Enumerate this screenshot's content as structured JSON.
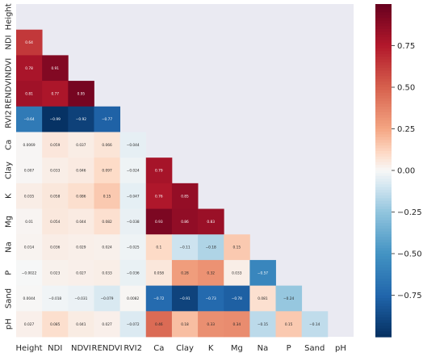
{
  "chart_data": {
    "type": "heatmap",
    "mask": "upper-triangle",
    "variables": [
      "Height",
      "NDI",
      "NDVI",
      "RENDVI",
      "RVI2",
      "Ca",
      "Clay",
      "K",
      "Mg",
      "Na",
      "P",
      "Sand",
      "pH"
    ],
    "cells": [
      {
        "row": "NDI",
        "col": "Height",
        "value": 0.64,
        "label": "0.64"
      },
      {
        "row": "NDVI",
        "col": "Height",
        "value": 0.78,
        "label": "0.78"
      },
      {
        "row": "NDVI",
        "col": "NDI",
        "value": 0.91,
        "label": "0.91"
      },
      {
        "row": "RENDVI",
        "col": "Height",
        "value": 0.81,
        "label": "0.81"
      },
      {
        "row": "RENDVI",
        "col": "NDI",
        "value": 0.77,
        "label": "0.77"
      },
      {
        "row": "RENDVI",
        "col": "NDVI",
        "value": 0.95,
        "label": "0.95"
      },
      {
        "row": "RVI2",
        "col": "Height",
        "value": -0.64,
        "label": "−0.64"
      },
      {
        "row": "RVI2",
        "col": "NDI",
        "value": -0.99,
        "label": "−0.99"
      },
      {
        "row": "RVI2",
        "col": "NDVI",
        "value": -0.92,
        "label": "−0.92"
      },
      {
        "row": "RVI2",
        "col": "RENDVI",
        "value": -0.77,
        "label": "−0.77"
      },
      {
        "row": "Ca",
        "col": "Height",
        "value": 0.0069,
        "label": "0.0069"
      },
      {
        "row": "Ca",
        "col": "NDI",
        "value": 0.059,
        "label": "0.059"
      },
      {
        "row": "Ca",
        "col": "NDVI",
        "value": 0.037,
        "label": "0.037"
      },
      {
        "row": "Ca",
        "col": "RENDVI",
        "value": 0.066,
        "label": "0.066"
      },
      {
        "row": "Ca",
        "col": "RVI2",
        "value": -0.044,
        "label": "−0.044"
      },
      {
        "row": "Clay",
        "col": "Height",
        "value": 0.007,
        "label": "0.007"
      },
      {
        "row": "Clay",
        "col": "NDI",
        "value": 0.033,
        "label": "0.033"
      },
      {
        "row": "Clay",
        "col": "NDVI",
        "value": 0.046,
        "label": "0.046"
      },
      {
        "row": "Clay",
        "col": "RENDVI",
        "value": 0.097,
        "label": "0.097"
      },
      {
        "row": "Clay",
        "col": "RVI2",
        "value": -0.024,
        "label": "−0.024"
      },
      {
        "row": "Clay",
        "col": "Ca",
        "value": 0.79,
        "label": "0.79"
      },
      {
        "row": "K",
        "col": "Height",
        "value": 0.035,
        "label": "0.035"
      },
      {
        "row": "K",
        "col": "NDI",
        "value": 0.058,
        "label": "0.058"
      },
      {
        "row": "K",
        "col": "NDVI",
        "value": 0.086,
        "label": "0.086"
      },
      {
        "row": "K",
        "col": "RENDVI",
        "value": 0.15,
        "label": "0.15"
      },
      {
        "row": "K",
        "col": "RVI2",
        "value": -0.047,
        "label": "−0.047"
      },
      {
        "row": "K",
        "col": "Ca",
        "value": 0.76,
        "label": "0.76"
      },
      {
        "row": "K",
        "col": "Clay",
        "value": 0.85,
        "label": "0.85"
      },
      {
        "row": "Mg",
        "col": "Height",
        "value": 0.01,
        "label": "0.01"
      },
      {
        "row": "Mg",
        "col": "NDI",
        "value": 0.054,
        "label": "0.054"
      },
      {
        "row": "Mg",
        "col": "NDVI",
        "value": 0.044,
        "label": "0.044"
      },
      {
        "row": "Mg",
        "col": "RENDVI",
        "value": 0.082,
        "label": "0.082"
      },
      {
        "row": "Mg",
        "col": "RVI2",
        "value": -0.038,
        "label": "−0.038"
      },
      {
        "row": "Mg",
        "col": "Ca",
        "value": 0.93,
        "label": "0.93"
      },
      {
        "row": "Mg",
        "col": "Clay",
        "value": 0.86,
        "label": "0.86"
      },
      {
        "row": "Mg",
        "col": "K",
        "value": 0.83,
        "label": "0.83"
      },
      {
        "row": "Na",
        "col": "Height",
        "value": 0.014,
        "label": "0.014"
      },
      {
        "row": "Na",
        "col": "NDI",
        "value": 0.036,
        "label": "0.036"
      },
      {
        "row": "Na",
        "col": "NDVI",
        "value": 0.029,
        "label": "0.029"
      },
      {
        "row": "Na",
        "col": "RENDVI",
        "value": 0.024,
        "label": "0.024"
      },
      {
        "row": "Na",
        "col": "RVI2",
        "value": -0.025,
        "label": "−0.025"
      },
      {
        "row": "Na",
        "col": "Ca",
        "value": 0.1,
        "label": "0.1"
      },
      {
        "row": "Na",
        "col": "Clay",
        "value": -0.11,
        "label": "−0.11"
      },
      {
        "row": "Na",
        "col": "K",
        "value": -0.18,
        "label": "−0.18"
      },
      {
        "row": "Na",
        "col": "Mg",
        "value": 0.15,
        "label": "0.15"
      },
      {
        "row": "P",
        "col": "Height",
        "value": -0.0022,
        "label": "−0.0022"
      },
      {
        "row": "P",
        "col": "NDI",
        "value": 0.023,
        "label": "0.023"
      },
      {
        "row": "P",
        "col": "NDVI",
        "value": 0.027,
        "label": "0.027"
      },
      {
        "row": "P",
        "col": "RENDVI",
        "value": 0.033,
        "label": "0.033"
      },
      {
        "row": "P",
        "col": "RVI2",
        "value": -0.036,
        "label": "−0.036"
      },
      {
        "row": "P",
        "col": "Ca",
        "value": 0.058,
        "label": "0.058"
      },
      {
        "row": "P",
        "col": "Clay",
        "value": 0.28,
        "label": "0.28"
      },
      {
        "row": "P",
        "col": "K",
        "value": 0.32,
        "label": "0.32"
      },
      {
        "row": "P",
        "col": "Mg",
        "value": 0.033,
        "label": "0.033"
      },
      {
        "row": "P",
        "col": "Na",
        "value": -0.57,
        "label": "−0.57"
      },
      {
        "row": "Sand",
        "col": "Height",
        "value": 0.0044,
        "label": "0.0044"
      },
      {
        "row": "Sand",
        "col": "NDI",
        "value": -0.018,
        "label": "−0.018"
      },
      {
        "row": "Sand",
        "col": "NDVI",
        "value": -0.031,
        "label": "−0.031"
      },
      {
        "row": "Sand",
        "col": "RENDVI",
        "value": -0.079,
        "label": "−0.079"
      },
      {
        "row": "Sand",
        "col": "RVI2",
        "value": 0.0082,
        "label": "0.0082"
      },
      {
        "row": "Sand",
        "col": "Ca",
        "value": -0.72,
        "label": "−0.72"
      },
      {
        "row": "Sand",
        "col": "Clay",
        "value": -0.91,
        "label": "−0.91"
      },
      {
        "row": "Sand",
        "col": "K",
        "value": -0.73,
        "label": "−0.73"
      },
      {
        "row": "Sand",
        "col": "Mg",
        "value": -0.78,
        "label": "−0.78"
      },
      {
        "row": "Sand",
        "col": "Na",
        "value": 0.081,
        "label": "0.081"
      },
      {
        "row": "Sand",
        "col": "P",
        "value": -0.24,
        "label": "−0.24"
      },
      {
        "row": "pH",
        "col": "Height",
        "value": 0.027,
        "label": "0.027"
      },
      {
        "row": "pH",
        "col": "NDI",
        "value": 0.085,
        "label": "0.085"
      },
      {
        "row": "pH",
        "col": "NDVI",
        "value": 0.041,
        "label": "0.041"
      },
      {
        "row": "pH",
        "col": "RENDVI",
        "value": 0.027,
        "label": "0.027"
      },
      {
        "row": "pH",
        "col": "RVI2",
        "value": -0.072,
        "label": "−0.072"
      },
      {
        "row": "pH",
        "col": "Ca",
        "value": 0.46,
        "label": "0.46"
      },
      {
        "row": "pH",
        "col": "Clay",
        "value": 0.18,
        "label": "0.18"
      },
      {
        "row": "pH",
        "col": "K",
        "value": 0.33,
        "label": "0.33"
      },
      {
        "row": "pH",
        "col": "Mg",
        "value": 0.34,
        "label": "0.34"
      },
      {
        "row": "pH",
        "col": "Na",
        "value": -0.15,
        "label": "−0.15"
      },
      {
        "row": "pH",
        "col": "P",
        "value": 0.15,
        "label": "0.15"
      },
      {
        "row": "pH",
        "col": "Sand",
        "value": -0.14,
        "label": "−0.14"
      }
    ],
    "colorbar": {
      "range": [
        -1,
        1
      ],
      "ticks": [
        0.75,
        0.5,
        0.25,
        0.0,
        -0.25,
        -0.5,
        -0.75
      ],
      "tick_labels": [
        "0.75",
        "0.50",
        "0.25",
        "0.00",
        "−0.25",
        "−0.50",
        "−0.75"
      ]
    },
    "colormap": "RdBu_r",
    "colors": {
      "masked_background": "#eaeaf2",
      "negative_end": "#053061",
      "neutral": "#f7f7f7",
      "positive_end": "#67001f"
    },
    "grid": false,
    "legend": "colorbar-right"
  }
}
